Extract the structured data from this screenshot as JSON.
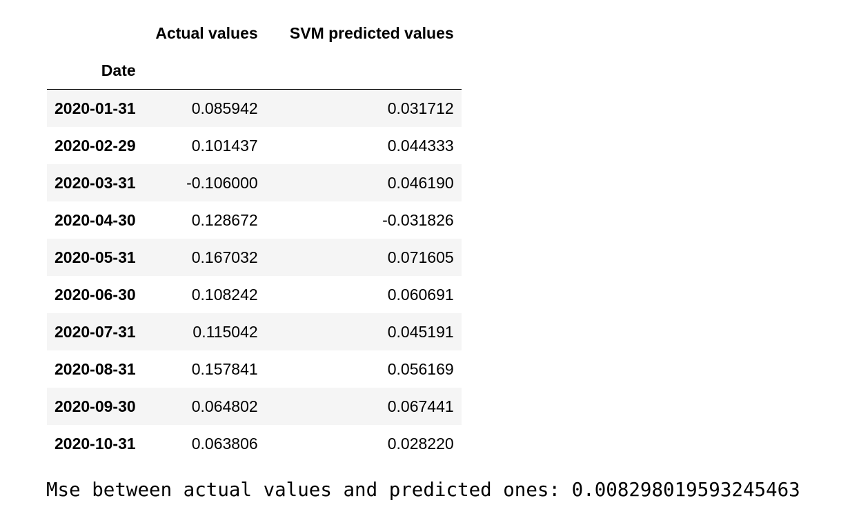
{
  "table": {
    "columns": [
      "Actual values",
      "SVM predicted values"
    ],
    "index_name": "Date",
    "rows": [
      {
        "date": "2020-01-31",
        "actual": "0.085942",
        "svm": "0.031712"
      },
      {
        "date": "2020-02-29",
        "actual": "0.101437",
        "svm": "0.044333"
      },
      {
        "date": "2020-03-31",
        "actual": "-0.106000",
        "svm": "0.046190"
      },
      {
        "date": "2020-04-30",
        "actual": "0.128672",
        "svm": "-0.031826"
      },
      {
        "date": "2020-05-31",
        "actual": "0.167032",
        "svm": "0.071605"
      },
      {
        "date": "2020-06-30",
        "actual": "0.108242",
        "svm": "0.060691"
      },
      {
        "date": "2020-07-31",
        "actual": "0.115042",
        "svm": "0.045191"
      },
      {
        "date": "2020-08-31",
        "actual": "0.157841",
        "svm": "0.056169"
      },
      {
        "date": "2020-09-30",
        "actual": "0.064802",
        "svm": "0.067441"
      },
      {
        "date": "2020-10-31",
        "actual": "0.063806",
        "svm": "0.028220"
      }
    ]
  },
  "output": {
    "mse_text": "Mse between actual values and predicted ones: 0.008298019593245463"
  },
  "colors": {
    "striped_row": "#f5f5f5",
    "text": "#000000",
    "background": "#ffffff"
  }
}
